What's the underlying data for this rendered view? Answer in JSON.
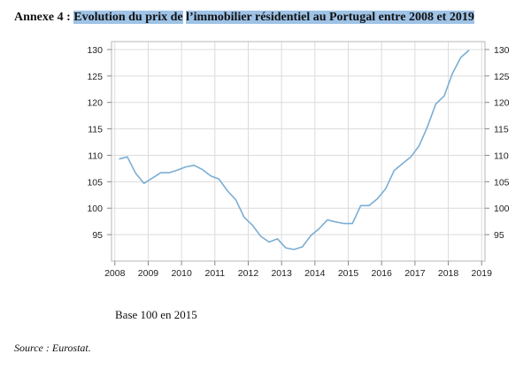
{
  "heading": {
    "prefix": "Annexe 4 : ",
    "part1": "Evolution du prix de",
    "part2": "l’immobilier résidentiel au Portugal entre 2008 et 2019"
  },
  "base_note": "Base 100 en 2015",
  "source_note": "Source : Eurostat.",
  "chart_data": {
    "type": "line",
    "title": "Evolution du prix de l’immobilier résidentiel au Portugal entre 2008 et 2019",
    "xlabel": "",
    "ylabel": "",
    "xlim": [
      2007.9,
      2019.1
    ],
    "ylim": [
      90,
      131.5
    ],
    "x_ticks": [
      2008,
      2009,
      2010,
      2011,
      2012,
      2013,
      2014,
      2015,
      2016,
      2017,
      2018,
      2019
    ],
    "y_ticks": [
      95,
      100,
      105,
      110,
      115,
      120,
      125,
      130
    ],
    "grid": true,
    "legend": "none",
    "line_color": "#7aaed3",
    "series": [
      {
        "x": [
          2008.125,
          2008.375,
          2008.625,
          2008.875,
          2009.125,
          2009.375,
          2009.625,
          2009.875,
          2010.125,
          2010.375,
          2010.625,
          2010.875,
          2011.125,
          2011.375,
          2011.625,
          2011.875,
          2012.125,
          2012.375,
          2012.625,
          2012.875,
          2013.125,
          2013.375,
          2013.625,
          2013.875,
          2014.125,
          2014.375,
          2014.625,
          2014.875,
          2015.125,
          2015.375,
          2015.625,
          2015.875,
          2016.125,
          2016.375,
          2016.625,
          2016.875,
          2017.125,
          2017.375,
          2017.625,
          2017.875,
          2018.125,
          2018.375,
          2018.625
        ],
        "values": [
          109.3,
          109.7,
          106.6,
          104.7,
          105.7,
          106.7,
          106.7,
          107.2,
          107.8,
          108.1,
          107.3,
          106.1,
          105.5,
          103.3,
          101.6,
          98.3,
          96.8,
          94.7,
          93.6,
          94.2,
          92.5,
          92.2,
          92.7,
          94.8,
          96.1,
          97.8,
          97.4,
          97.1,
          97.1,
          100.5,
          100.5,
          101.8,
          103.7,
          107.1,
          108.4,
          109.7,
          111.8,
          115.4,
          119.7,
          121.2,
          125.5,
          128.5,
          129.9
        ]
      }
    ]
  }
}
